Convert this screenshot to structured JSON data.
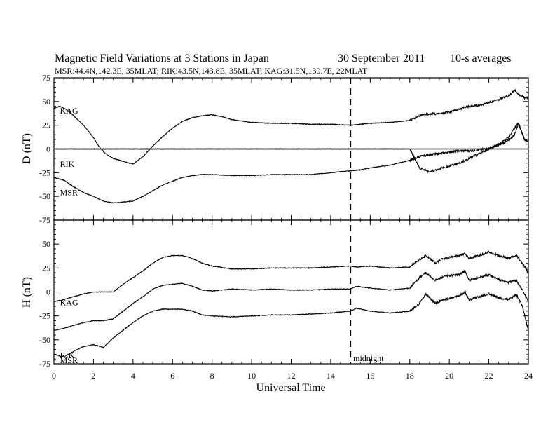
{
  "header": {
    "title_left": "Magnetic Field Variations at 3 Stations in Japan",
    "title_date": "30 September",
    "title_year": "2011",
    "title_avg": "10-s averages",
    "subtitle": "MSR:44.4N,142.3E, 35MLAT;  RIK:43.5N,143.8E, 35MLAT;  KAG:31.5N,130.7E, 22MLAT"
  },
  "chart_data": [
    {
      "type": "line",
      "panel": "top",
      "ylabel": "D (nT)",
      "xlabel": "",
      "xlim": [
        0,
        24
      ],
      "ylim": [
        -75,
        75
      ],
      "yticks": [
        75,
        50,
        25,
        0,
        -25,
        -50,
        -75
      ],
      "zero_line": true,
      "series": [
        {
          "name": "KAG",
          "x": [
            0,
            0.3,
            0.6,
            1,
            1.5,
            2,
            2.3,
            2.6,
            3,
            3.5,
            4,
            4.5,
            5,
            5.5,
            6,
            6.5,
            7,
            7.5,
            8,
            8.5,
            9,
            10,
            11,
            12,
            13,
            14,
            15,
            15.5,
            16,
            17,
            18,
            18.5,
            19,
            19.5,
            20,
            20.5,
            21,
            21.5,
            22,
            22.5,
            23,
            23.3,
            23.5,
            23.8,
            24
          ],
          "y": [
            43,
            45,
            42,
            35,
            25,
            12,
            2,
            -5,
            -10,
            -13,
            -16,
            -8,
            3,
            13,
            22,
            29,
            33,
            35,
            36,
            34,
            31,
            28,
            27,
            27,
            26,
            26,
            25,
            26,
            27,
            28,
            30,
            35,
            37,
            37,
            39,
            42,
            45,
            46,
            49,
            52,
            56,
            62,
            58,
            54,
            53
          ]
        },
        {
          "name": "RIK",
          "x": [
            0,
            0.5,
            1,
            1.5,
            2,
            3,
            4,
            5,
            6,
            7,
            8,
            9,
            10,
            11,
            12,
            13,
            14,
            15,
            16,
            17,
            18,
            18.5,
            19,
            19.5,
            20,
            20.5,
            21,
            21.5,
            22,
            22.5,
            23,
            23.3,
            23.5,
            23.8,
            24
          ],
          "y": [
            0,
            0,
            0,
            0,
            0,
            0,
            0,
            0,
            0,
            0,
            0,
            0,
            0,
            0,
            0,
            0,
            0,
            0,
            0,
            0,
            0,
            -20,
            -24,
            -21,
            -18,
            -15,
            -10,
            -5,
            0,
            5,
            12,
            22,
            28,
            10,
            8
          ]
        },
        {
          "name": "MSR",
          "x": [
            0,
            0.5,
            1,
            1.5,
            2,
            2.5,
            3,
            3.5,
            4,
            4.5,
            5,
            5.5,
            6,
            6.5,
            7,
            7.5,
            8,
            9,
            10,
            11,
            12,
            13,
            14,
            15,
            15.5,
            16,
            17,
            18,
            18.5,
            19,
            19.5,
            20,
            20.5,
            21,
            21.5,
            22,
            22.5,
            23,
            23.3,
            23.5,
            23.8,
            24
          ],
          "y": [
            -30,
            -33,
            -40,
            -46,
            -50,
            -55,
            -57,
            -56,
            -55,
            -50,
            -44,
            -38,
            -34,
            -30,
            -28,
            -27,
            -27,
            -28,
            -28,
            -27,
            -27,
            -27,
            -25,
            -23,
            -22,
            -20,
            -17,
            -12,
            -8,
            -6,
            -5,
            -3,
            -2,
            -2,
            -1,
            1,
            4,
            9,
            15,
            27,
            10,
            8
          ]
        }
      ]
    },
    {
      "type": "line",
      "panel": "bottom",
      "ylabel": "H (nT)",
      "xlabel": "Universal Time",
      "xlim": [
        0,
        24
      ],
      "ylim": [
        -75,
        75
      ],
      "yticks": [
        50,
        25,
        0,
        -25,
        -50,
        -75
      ],
      "xticks": [
        0,
        2,
        4,
        6,
        8,
        10,
        12,
        14,
        16,
        18,
        20,
        22,
        24
      ],
      "series": [
        {
          "name": "KAG",
          "x": [
            0,
            0.5,
            1,
            1.5,
            2,
            2.5,
            3,
            3.5,
            4,
            4.5,
            5,
            5.5,
            6,
            6.5,
            7,
            7.5,
            8,
            9,
            10,
            11,
            12,
            13,
            14,
            15,
            15.3,
            16,
            17,
            18,
            18.5,
            18.8,
            19.3,
            19.7,
            20,
            20.5,
            20.8,
            21,
            21.5,
            22,
            22.5,
            23,
            23.4,
            23.7,
            24
          ],
          "y": [
            -10,
            -8,
            -5,
            -2,
            0,
            0,
            0,
            8,
            15,
            22,
            30,
            36,
            38,
            38,
            35,
            30,
            27,
            24,
            24,
            25,
            25,
            25,
            26,
            27,
            26,
            27,
            25,
            26,
            34,
            38,
            30,
            35,
            36,
            38,
            40,
            35,
            38,
            42,
            38,
            35,
            38,
            30,
            20
          ]
        },
        {
          "name": "RIK",
          "x": [
            0,
            0.5,
            1,
            1.5,
            2,
            2.5,
            3,
            3.5,
            4,
            4.5,
            5,
            5.5,
            6,
            6.5,
            7,
            7.5,
            8,
            9,
            10,
            11,
            12,
            13,
            14,
            15,
            15.3,
            16,
            17,
            18,
            18.5,
            18.8,
            19.3,
            19.7,
            20,
            20.5,
            20.8,
            21,
            21.5,
            22,
            22.5,
            23,
            23.4,
            23.7,
            24
          ],
          "y": [
            -40,
            -38,
            -35,
            -32,
            -30,
            -30,
            -28,
            -20,
            -12,
            -5,
            3,
            7,
            8,
            9,
            6,
            2,
            1,
            3,
            2,
            3,
            2,
            2,
            3,
            3,
            6,
            4,
            2,
            4,
            15,
            20,
            12,
            16,
            17,
            18,
            22,
            12,
            15,
            18,
            13,
            10,
            12,
            2,
            -10
          ]
        },
        {
          "name": "MSR",
          "x": [
            0,
            0.5,
            1,
            1.5,
            2,
            2.5,
            3,
            3.5,
            4,
            4.5,
            5,
            5.5,
            6,
            6.5,
            7,
            7.5,
            8,
            9,
            10,
            11,
            12,
            13,
            14,
            15,
            15.3,
            16,
            17,
            18,
            18.5,
            18.8,
            19.3,
            19.7,
            20,
            20.5,
            20.8,
            21,
            21.5,
            22,
            22.5,
            23,
            23.4,
            23.7,
            24
          ],
          "y": [
            -65,
            -68,
            -62,
            -57,
            -55,
            -58,
            -48,
            -40,
            -32,
            -25,
            -20,
            -18,
            -18,
            -18,
            -20,
            -24,
            -25,
            -26,
            -25,
            -24,
            -24,
            -23,
            -22,
            -20,
            -17,
            -20,
            -22,
            -20,
            -12,
            -2,
            -12,
            -8,
            -7,
            -4,
            0,
            -8,
            -5,
            -2,
            -6,
            -8,
            -3,
            -15,
            -40
          ]
        }
      ]
    }
  ],
  "annotations": {
    "midnight_label": "midnight",
    "midnight_x": 15,
    "station_labels_top": [
      {
        "name": "KAG",
        "x": 0.2,
        "y": 46
      },
      {
        "name": "RIK",
        "x": 0.2,
        "y": -10
      },
      {
        "name": "MSR",
        "x": 0.2,
        "y": -40
      }
    ],
    "station_labels_bottom": [
      {
        "name": "KAG",
        "x": 0.2,
        "y": -5
      },
      {
        "name": "RIK",
        "x": 0.2,
        "y": -60
      },
      {
        "name": "MSR",
        "x": 0.2,
        "y": -95
      }
    ]
  }
}
